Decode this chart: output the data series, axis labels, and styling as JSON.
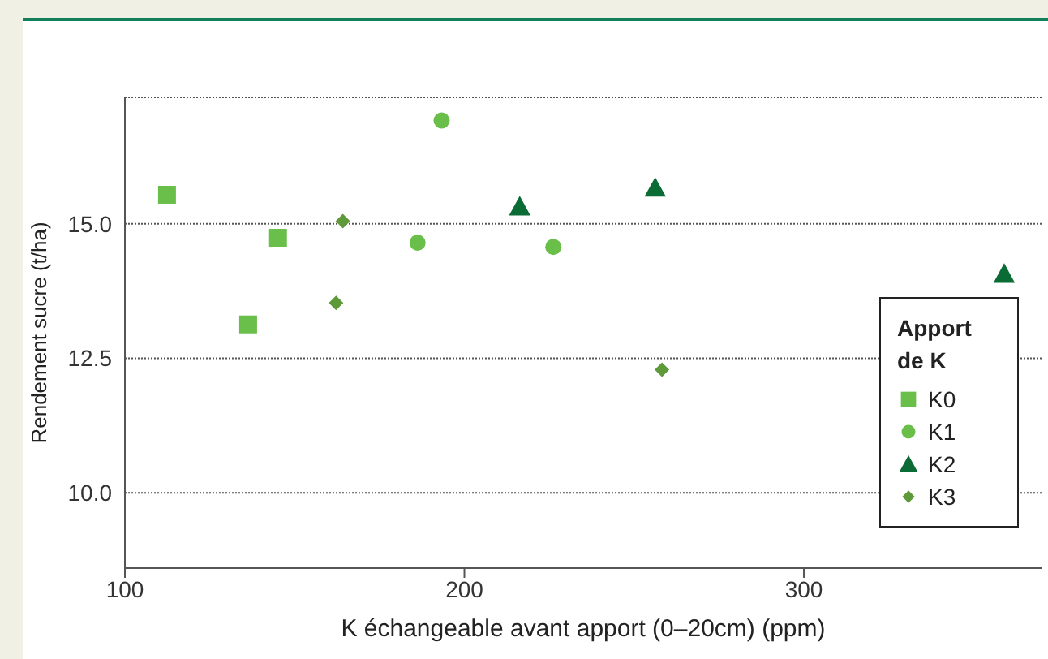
{
  "chart_data": {
    "type": "scatter",
    "xlabel": "K échangeable avant apport (0–20cm) (ppm)",
    "ylabel": "Rendement sucre (t/ha)",
    "legend_title": "Apport de K",
    "legend": "right",
    "grid": "y",
    "xlim": [
      100,
      370
    ],
    "xticks": [
      100,
      200,
      300
    ],
    "ylim": [
      8.6,
      17.35
    ],
    "yticks": [
      {
        "value": 10,
        "label": "10.0"
      },
      {
        "value": 12.5,
        "label": "12.5"
      },
      {
        "value": 15,
        "label": "15.0"
      }
    ],
    "series": [
      {
        "name": "K0",
        "color": "#6abf4b",
        "marker": "square",
        "x": [
          112.4,
          136.3,
          145.1
        ],
        "values": [
          15.54,
          13.13,
          14.74
        ]
      },
      {
        "name": "K1",
        "color": "#6abf4b",
        "marker": "circle",
        "x": [
          193.3,
          186.2,
          226.2
        ],
        "values": [
          16.92,
          14.65,
          14.57
        ]
      },
      {
        "name": "K2",
        "color": "#0b6b35",
        "marker": "triangle",
        "x": [
          216.3,
          256.2,
          359.0
        ],
        "values": [
          15.32,
          15.67,
          14.07
        ]
      },
      {
        "name": "K3",
        "color": "#5f9a3a",
        "marker": "diamond",
        "x": [
          164.2,
          162.2,
          258.2
        ],
        "values": [
          15.05,
          13.53,
          12.29
        ]
      }
    ]
  }
}
